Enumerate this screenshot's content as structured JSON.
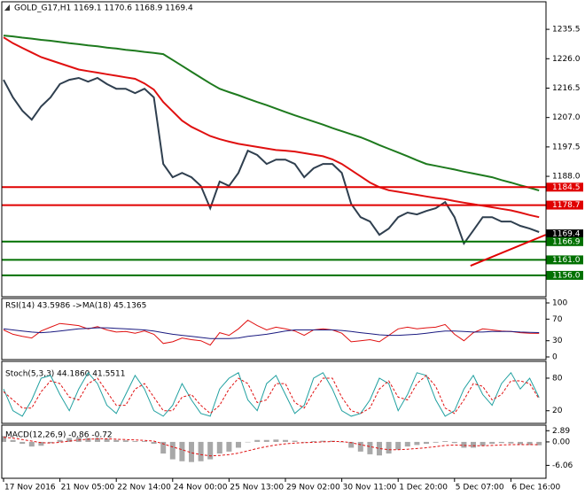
{
  "chart_data": [
    {
      "type": "line",
      "title": "GOLD_G17,H1  1169.1 1170.6 1168.9 1169.4",
      "categories": [
        "17 Nov 2016",
        null,
        null,
        null,
        null,
        null,
        "21 Nov 05:00",
        null,
        null,
        null,
        null,
        null,
        "22 Nov 14:00",
        null,
        null,
        null,
        null,
        null,
        "24 Nov 00:00",
        null,
        null,
        null,
        null,
        null,
        "25 Nov 13:00",
        null,
        null,
        null,
        null,
        null,
        "29 Nov 02:00",
        null,
        null,
        null,
        null,
        null,
        "30 Nov 11:00",
        null,
        null,
        null,
        null,
        null,
        "1 Dec 20:00",
        null,
        null,
        null,
        null,
        null,
        "5 Dec 07:00",
        null,
        null,
        null,
        null,
        null,
        "6 Dec 16:00",
        null,
        null,
        null
      ],
      "series": [
        {
          "color": "#2f3f4f",
          "values": [
            1219.2,
            1213.5,
            1209.2,
            1206.3,
            1210.6,
            1213.5,
            1217.8,
            1219.2,
            1219.8,
            1218.6,
            1219.8,
            1217.8,
            1216.3,
            1216.3,
            1214.9,
            1216.3,
            1213.5,
            1192,
            1187.7,
            1189.1,
            1187.7,
            1184.9,
            1177.7,
            1186.3,
            1184.9,
            1189.1,
            1196.3,
            1194.9,
            1192,
            1193.4,
            1193.4,
            1192,
            1187.7,
            1190.6,
            1192,
            1192,
            1189.1,
            1179.1,
            1174.8,
            1173.4,
            1169.1,
            1171.1,
            1174.8,
            1176.3,
            1175.7,
            1176.8,
            1177.7,
            1179.7,
            1174.8,
            1166.3,
            1170.5,
            1174.8,
            1174.8,
            1173.4,
            1173.4,
            1172,
            1171.1,
            1170
          ]
        },
        {
          "color": "#e01010",
          "values": [
            1232.9,
            1231,
            1229.5,
            1228,
            1226.5,
            1225.5,
            1224.5,
            1223.5,
            1222.5,
            1222,
            1221.5,
            1221,
            1220.5,
            1220,
            1219.5,
            1218,
            1216,
            1212,
            1209,
            1206,
            1204,
            1202.5,
            1201,
            1200,
            1199.2,
            1198.5,
            1198,
            1197.5,
            1197,
            1196.5,
            1196.3,
            1196,
            1195.5,
            1195,
            1194.5,
            1193.5,
            1192,
            1190,
            1188,
            1186,
            1184.5,
            1183.5,
            1183,
            1182.5,
            1182,
            1181.5,
            1181,
            1180.6,
            1180,
            1179.5,
            1179,
            1178.5,
            1178,
            1177.5,
            1177,
            1176.3,
            1175.5,
            1174.8
          ]
        },
        {
          "color": "#1e7a1e",
          "values": [
            1233.5,
            1233.2,
            1232.8,
            1232.5,
            1232.1,
            1231.8,
            1231.4,
            1231,
            1230.7,
            1230.3,
            1230,
            1229.6,
            1229.3,
            1228.9,
            1228.6,
            1228.2,
            1227.9,
            1227.5,
            1225.6,
            1223.7,
            1221.8,
            1219.9,
            1218,
            1216.3,
            1215.2,
            1214.2,
            1213.1,
            1212,
            1211,
            1209.9,
            1208.8,
            1207.7,
            1206.7,
            1205.7,
            1204.7,
            1203.6,
            1202.6,
            1201.6,
            1200.6,
            1199.4,
            1198.1,
            1196.9,
            1195.7,
            1194.5,
            1193.2,
            1192,
            1191.4,
            1190.8,
            1190.2,
            1189.5,
            1188.9,
            1188.3,
            1187.7,
            1186.8,
            1186,
            1185.1,
            1184.3,
            1183.4
          ]
        }
      ],
      "ylim": [
        1149.1,
        1244.4
      ],
      "yticks": [
        1235.5,
        {
          "value": 1226,
          "label": "1226.0"
        },
        1216.5,
        {
          "value": 1207,
          "label": "1207.0"
        },
        1197.5,
        {
          "value": 1188,
          "label": "1188.0"
        }
      ],
      "levels": [
        {
          "value": 1184.5,
          "label": "1184.5",
          "color": "#e00000"
        },
        {
          "value": 1178.7,
          "label": "1178.7",
          "color": "#e00000"
        },
        {
          "value": 1166.9,
          "label": "1166.9",
          "color": "#007000"
        },
        {
          "value": 1161,
          "label": "1161.0",
          "color": "#007000"
        },
        {
          "value": 1156,
          "label": "1156.0",
          "color": "#007000"
        }
      ],
      "current": 1169.4,
      "trendline": {
        "color": "#e00000",
        "x": [
          49.7,
          57.7
        ],
        "values": [
          1159.1,
          1169.1
        ]
      }
    },
    {
      "type": "line",
      "title": "RSI(14) 43.5986 ->MA(18) 45.1365",
      "series": [
        {
          "color": "#e01010",
          "style": "solid",
          "values": [
            50,
            42,
            38,
            35,
            48,
            55,
            62,
            60,
            58,
            52,
            56,
            50,
            46,
            47,
            44,
            48,
            42,
            25,
            28,
            35,
            32,
            30,
            22,
            45,
            40,
            52,
            68,
            58,
            50,
            55,
            52,
            48,
            40,
            50,
            52,
            50,
            44,
            28,
            30,
            32,
            28,
            40,
            52,
            55,
            52,
            54,
            55,
            60,
            42,
            30,
            45,
            52,
            50,
            48,
            47,
            45,
            44,
            43.6
          ]
        },
        {
          "color": "#1a1a80",
          "style": "solid",
          "values": [
            52,
            50,
            48,
            46,
            45,
            46,
            48,
            50,
            52,
            53,
            54,
            54,
            53,
            52,
            51,
            50,
            48,
            45,
            42,
            40,
            38,
            36,
            34,
            34,
            34,
            35,
            38,
            40,
            42,
            45,
            48,
            50,
            50,
            50,
            50,
            50,
            49,
            47,
            45,
            43,
            41,
            40,
            40,
            41,
            42,
            44,
            46,
            48,
            48,
            47,
            46,
            46,
            47,
            47,
            47,
            46,
            45.5,
            45.1
          ]
        }
      ],
      "ylim": [
        0,
        100
      ],
      "yticks": [
        100,
        70,
        30,
        0
      ]
    },
    {
      "type": "line",
      "title": "Stoch(5,3,3) 44.1860 41.5511",
      "series": [
        {
          "color": "#20a0a0",
          "style": "solid",
          "values": [
            60,
            20,
            10,
            40,
            80,
            85,
            50,
            20,
            60,
            90,
            70,
            30,
            15,
            50,
            85,
            60,
            20,
            10,
            30,
            70,
            40,
            15,
            10,
            60,
            80,
            90,
            40,
            20,
            70,
            85,
            50,
            15,
            30,
            80,
            90,
            60,
            20,
            10,
            15,
            40,
            80,
            70,
            20,
            50,
            90,
            85,
            40,
            10,
            20,
            60,
            85,
            50,
            30,
            70,
            90,
            60,
            80,
            44.2
          ]
        },
        {
          "color": "#e01010",
          "style": "dashed",
          "values": [
            55,
            40,
            25,
            25,
            55,
            75,
            70,
            45,
            40,
            70,
            80,
            55,
            30,
            30,
            60,
            70,
            45,
            20,
            20,
            45,
            50,
            30,
            15,
            30,
            60,
            80,
            70,
            35,
            40,
            70,
            70,
            35,
            25,
            55,
            80,
            80,
            45,
            20,
            15,
            25,
            60,
            75,
            45,
            40,
            70,
            85,
            65,
            25,
            15,
            40,
            70,
            65,
            40,
            50,
            75,
            75,
            70,
            41.6
          ]
        }
      ],
      "ylim": [
        0,
        100
      ],
      "yticks": [
        80,
        20
      ]
    },
    {
      "type": "bar",
      "title": "MACD(12,26,9) -0.86 -0.72",
      "series": [
        {
          "color": "#a8a8a8",
          "style": "bar",
          "values": [
            1.5,
            0.5,
            -0.5,
            -1.2,
            -1,
            -0.3,
            0.5,
            1,
            1.2,
            1,
            1,
            0.8,
            0.5,
            0.4,
            0.2,
            0.2,
            -0.5,
            -3,
            -4.5,
            -5,
            -5.2,
            -5,
            -4.5,
            -3,
            -2.5,
            -1.5,
            0,
            0.5,
            0.5,
            0.6,
            0.5,
            0.3,
            0,
            0.2,
            0.3,
            0.3,
            0,
            -1.5,
            -2.5,
            -3.2,
            -3.5,
            -3,
            -2,
            -1.2,
            -0.8,
            -0.5,
            -0.2,
            0.2,
            -0.3,
            -1.5,
            -1.5,
            -1,
            -0.5,
            -0.3,
            -0.4,
            -0.6,
            -0.8,
            -0.86
          ]
        },
        {
          "color": "#e01010",
          "style": "dashed",
          "values": [
            1.2,
            1,
            0.6,
            0.2,
            -0.2,
            -0.3,
            -0.1,
            0.2,
            0.5,
            0.7,
            0.8,
            0.8,
            0.7,
            0.6,
            0.5,
            0.4,
            0.2,
            -0.5,
            -1.3,
            -2,
            -2.8,
            -3.3,
            -3.6,
            -3.5,
            -3.3,
            -2.9,
            -2.3,
            -1.7,
            -1.2,
            -0.8,
            -0.5,
            -0.3,
            -0.2,
            -0.1,
            0,
            0.1,
            0.1,
            -0.2,
            -0.7,
            -1.2,
            -1.7,
            -2,
            -2,
            -1.9,
            -1.7,
            -1.5,
            -1.2,
            -0.9,
            -0.8,
            -0.9,
            -1,
            -1,
            -0.9,
            -0.8,
            -0.7,
            -0.7,
            -0.7,
            -0.72
          ]
        }
      ],
      "ylim": [
        -9.4,
        4.33
      ],
      "yticks": [
        2.89,
        {
          "value": 0,
          "label": "0.00"
        },
        -6.06
      ]
    }
  ]
}
